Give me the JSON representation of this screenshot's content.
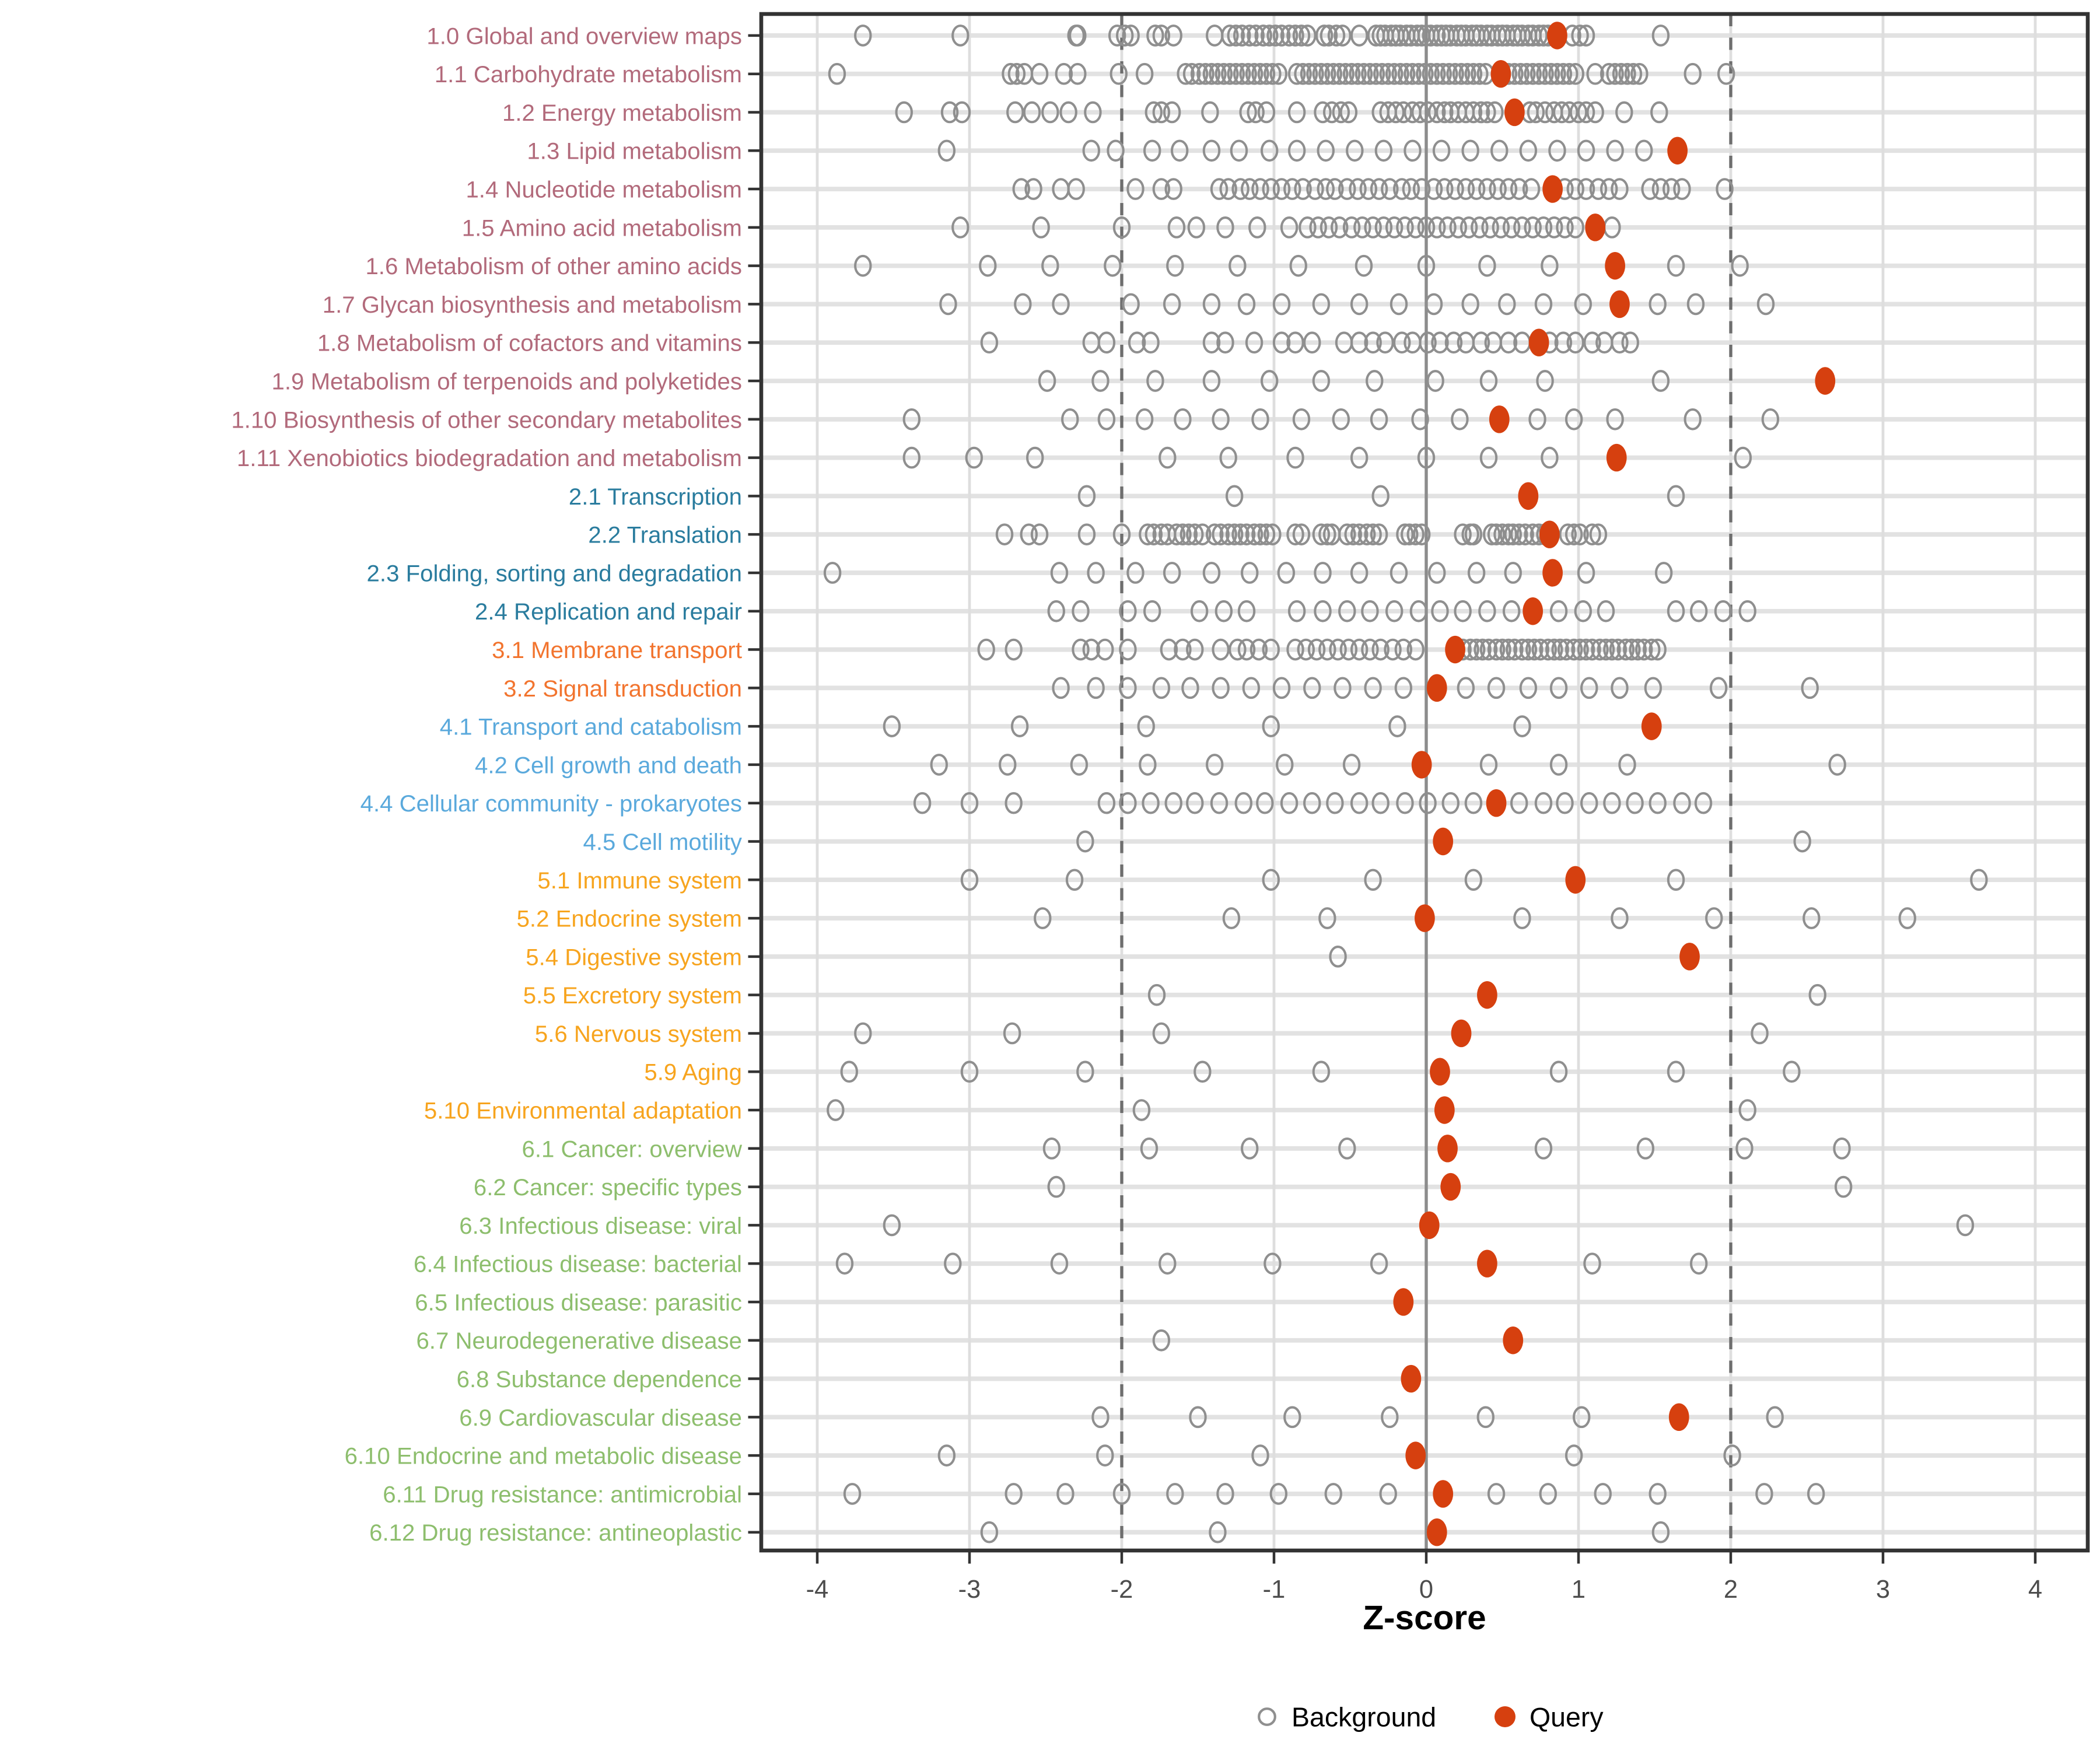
{
  "legend": {
    "background": "Background",
    "query": "Query"
  },
  "colors": {
    "query_point": "#D6400F",
    "background_point_stroke": "#8F8F8F",
    "row_gridline": "#E2E2E2",
    "col_gridline": "#DEDEDE",
    "zero_line": "#8C8C8C",
    "dashed_line": "#6E6E6E",
    "panel_border": "#333333",
    "tick_label": "#4D4D4D",
    "groups": {
      "1": "#B26A7B",
      "2": "#2A7C9E",
      "3": "#F2742E",
      "4": "#5AA9DC",
      "5": "#F7A41E",
      "6": "#8DBE6D"
    }
  },
  "chart_data": {
    "type": "scatter",
    "subtype": "horizontal-dot-strip",
    "title": "",
    "xlabel": "Z-score",
    "ylabel": "",
    "x_ticks": [
      -4,
      -3,
      -2,
      -1,
      0,
      1,
      2,
      3,
      4
    ],
    "xlim": [
      -4.4,
      4.35
    ],
    "grid": true,
    "legend_position": "bottom",
    "reference_lines": {
      "solid": [
        0
      ],
      "dashed": [
        -2,
        2
      ]
    },
    "series_names": [
      "Background",
      "Query"
    ],
    "rows": [
      {
        "label": "1.0 Global and overview maps",
        "group": "1",
        "query": 0.86,
        "background": [
          -3.7,
          -3.06,
          -2.3,
          -2.29,
          -2.03,
          -1.98,
          -1.94,
          -1.78,
          -1.74,
          -1.66,
          -1.39,
          -1.29,
          -1.25,
          -1.21,
          -1.16,
          -1.12,
          -1.07,
          -1.03,
          -0.99,
          -0.95,
          -0.9,
          -0.86,
          -0.82,
          -0.78,
          -0.67,
          -0.64,
          -0.59,
          -0.55,
          -0.44,
          -0.33,
          -0.3,
          -0.27,
          -0.23,
          -0.2,
          -0.17,
          -0.13,
          -0.1,
          -0.06,
          -0.03,
          0.0,
          0.03,
          0.07,
          0.1,
          0.13,
          0.16,
          0.2,
          0.23,
          0.26,
          0.3,
          0.33,
          0.36,
          0.4,
          0.43,
          0.47,
          0.5,
          0.53,
          0.57,
          0.6,
          0.63,
          0.67,
          0.7,
          0.74,
          0.77,
          0.8,
          0.96,
          1.01,
          1.05,
          1.54
        ]
      },
      {
        "label": "1.1 Carbohydrate metabolism",
        "group": "1",
        "query": 0.49,
        "background": [
          -3.87,
          -2.73,
          -2.69,
          -2.64,
          -2.54,
          -2.38,
          -2.29,
          -2.02,
          -1.85,
          -1.58,
          -1.54,
          -1.49,
          -1.45,
          -1.41,
          -1.37,
          -1.33,
          -1.29,
          -1.25,
          -1.21,
          -1.17,
          -1.13,
          -1.09,
          -1.05,
          -1.01,
          -0.97,
          -0.85,
          -0.81,
          -0.77,
          -0.73,
          -0.69,
          -0.65,
          -0.61,
          -0.57,
          -0.53,
          -0.49,
          -0.45,
          -0.41,
          -0.37,
          -0.33,
          -0.29,
          -0.25,
          -0.21,
          -0.17,
          -0.13,
          -0.09,
          -0.05,
          -0.01,
          0.03,
          0.07,
          0.11,
          0.15,
          0.19,
          0.23,
          0.27,
          0.31,
          0.35,
          0.39,
          0.54,
          0.58,
          0.62,
          0.66,
          0.7,
          0.74,
          0.78,
          0.82,
          0.86,
          0.9,
          0.94,
          0.98,
          1.11,
          1.2,
          1.24,
          1.28,
          1.32,
          1.36,
          1.4,
          1.75,
          1.97
        ]
      },
      {
        "label": "1.2 Energy metabolism",
        "group": "1",
        "query": 0.58,
        "background": [
          -3.43,
          -3.13,
          -3.05,
          -2.7,
          -2.59,
          -2.47,
          -2.35,
          -2.19,
          -1.79,
          -1.74,
          -1.67,
          -1.42,
          -1.17,
          -1.12,
          -1.05,
          -0.85,
          -0.68,
          -0.62,
          -0.56,
          -0.51,
          -0.3,
          -0.25,
          -0.2,
          -0.15,
          -0.09,
          -0.04,
          0.01,
          0.07,
          0.12,
          0.16,
          0.21,
          0.26,
          0.31,
          0.36,
          0.4,
          0.45,
          0.68,
          0.72,
          0.78,
          0.84,
          0.89,
          0.94,
          1.0,
          1.05,
          1.11,
          1.3,
          1.53
        ]
      },
      {
        "label": "1.3 Lipid metabolism",
        "group": "1",
        "query": 1.65,
        "background": [
          -3.15,
          -2.2,
          -2.04,
          -1.8,
          -1.62,
          -1.41,
          -1.23,
          -1.03,
          -0.85,
          -0.66,
          -0.47,
          -0.28,
          -0.09,
          0.1,
          0.29,
          0.48,
          0.67,
          0.86,
          1.05,
          1.24,
          1.43
        ]
      },
      {
        "label": "1.4 Nucleotide metabolism",
        "group": "1",
        "query": 0.83,
        "background": [
          -2.66,
          -2.58,
          -2.4,
          -2.3,
          -1.91,
          -1.74,
          -1.66,
          -1.36,
          -1.3,
          -1.22,
          -1.16,
          -1.09,
          -1.02,
          -0.95,
          -0.88,
          -0.81,
          -0.73,
          -0.66,
          -0.6,
          -0.52,
          -0.45,
          -0.38,
          -0.31,
          -0.24,
          -0.16,
          -0.1,
          -0.03,
          0.05,
          0.12,
          0.19,
          0.26,
          0.33,
          0.4,
          0.47,
          0.54,
          0.61,
          0.69,
          0.91,
          0.98,
          1.05,
          1.13,
          1.2,
          1.27,
          1.47,
          1.54,
          1.61,
          1.68,
          1.96
        ]
      },
      {
        "label": "1.5 Amino acid metabolism",
        "group": "1",
        "query": 1.11,
        "background": [
          -3.06,
          -2.53,
          -2.0,
          -1.64,
          -1.51,
          -1.32,
          -1.11,
          -0.9,
          -0.78,
          -0.71,
          -0.64,
          -0.57,
          -0.49,
          -0.42,
          -0.35,
          -0.28,
          -0.21,
          -0.14,
          -0.07,
          0.0,
          0.07,
          0.14,
          0.21,
          0.28,
          0.35,
          0.42,
          0.49,
          0.56,
          0.63,
          0.7,
          0.77,
          0.84,
          0.91,
          0.98,
          1.22
        ]
      },
      {
        "label": "1.6 Metabolism of other amino acids",
        "group": "1",
        "query": 1.24,
        "background": [
          -3.7,
          -2.88,
          -2.47,
          -2.06,
          -1.65,
          -1.24,
          -0.84,
          -0.41,
          0.0,
          0.4,
          0.81,
          1.64,
          2.06
        ]
      },
      {
        "label": "1.7 Glycan biosynthesis and metabolism",
        "group": "1",
        "query": 1.27,
        "background": [
          -3.14,
          -2.65,
          -2.4,
          -1.94,
          -1.67,
          -1.41,
          -1.18,
          -0.95,
          -0.69,
          -0.44,
          -0.18,
          0.05,
          0.29,
          0.53,
          0.77,
          1.03,
          1.52,
          1.77,
          2.23
        ]
      },
      {
        "label": "1.8 Metabolism of cofactors and vitamins",
        "group": "1",
        "query": 0.74,
        "background": [
          -2.87,
          -2.2,
          -2.1,
          -1.9,
          -1.81,
          -1.41,
          -1.32,
          -1.13,
          -0.95,
          -0.86,
          -0.75,
          -0.54,
          -0.44,
          -0.35,
          -0.27,
          -0.16,
          -0.09,
          0.01,
          0.09,
          0.18,
          0.26,
          0.36,
          0.44,
          0.54,
          0.63,
          0.81,
          0.9,
          0.98,
          1.09,
          1.17,
          1.27,
          1.34
        ]
      },
      {
        "label": "1.9 Metabolism of terpenoids and polyketides",
        "group": "1",
        "query": 2.62,
        "background": [
          -2.49,
          -2.14,
          -1.78,
          -1.41,
          -1.03,
          -0.69,
          -0.34,
          0.06,
          0.41,
          0.78,
          1.54
        ]
      },
      {
        "label": "1.10 Biosynthesis of other secondary metabolites",
        "group": "1",
        "query": 0.48,
        "background": [
          -3.38,
          -2.34,
          -2.1,
          -1.85,
          -1.6,
          -1.35,
          -1.09,
          -0.82,
          -0.56,
          -0.31,
          -0.04,
          0.22,
          0.73,
          0.97,
          1.24,
          1.75,
          2.26
        ]
      },
      {
        "label": "1.11 Xenobiotics biodegradation and metabolism",
        "group": "1",
        "query": 1.25,
        "background": [
          -3.38,
          -2.97,
          -2.57,
          -1.7,
          -1.3,
          -0.86,
          -0.44,
          0.0,
          0.41,
          0.81,
          2.08
        ]
      },
      {
        "label": "2.1 Transcription",
        "group": "2",
        "query": 0.67,
        "background": [
          -2.23,
          -1.26,
          -0.3,
          1.64
        ]
      },
      {
        "label": "2.2 Translation",
        "group": "2",
        "query": 0.81,
        "background": [
          -2.77,
          -2.61,
          -2.54,
          -2.23,
          -2.0,
          -1.83,
          -1.79,
          -1.74,
          -1.7,
          -1.64,
          -1.6,
          -1.56,
          -1.52,
          -1.47,
          -1.39,
          -1.35,
          -1.3,
          -1.26,
          -1.22,
          -1.18,
          -1.13,
          -1.09,
          -1.05,
          -1.01,
          -0.86,
          -0.82,
          -0.69,
          -0.65,
          -0.62,
          -0.52,
          -0.48,
          -0.44,
          -0.39,
          -0.35,
          -0.31,
          -0.14,
          -0.11,
          -0.07,
          -0.03,
          0.24,
          0.29,
          0.31,
          0.43,
          0.46,
          0.5,
          0.54,
          0.57,
          0.61,
          0.65,
          0.7,
          0.74,
          0.78,
          0.93,
          0.97,
          1.01,
          1.09,
          1.13
        ]
      },
      {
        "label": "2.3 Folding, sorting and degradation",
        "group": "2",
        "query": 0.83,
        "background": [
          -3.9,
          -2.41,
          -2.17,
          -1.91,
          -1.67,
          -1.41,
          -1.16,
          -0.92,
          -0.68,
          -0.44,
          -0.18,
          0.07,
          0.33,
          0.57,
          1.05,
          1.56
        ]
      },
      {
        "label": "2.4 Replication and repair",
        "group": "2",
        "query": 0.7,
        "background": [
          -2.43,
          -2.27,
          -1.96,
          -1.8,
          -1.49,
          -1.33,
          -1.18,
          -0.85,
          -0.68,
          -0.52,
          -0.37,
          -0.21,
          -0.05,
          0.09,
          0.24,
          0.4,
          0.56,
          0.87,
          1.03,
          1.18,
          1.64,
          1.79,
          1.95,
          2.11
        ]
      },
      {
        "label": "3.1 Membrane transport",
        "group": "3",
        "query": 0.19,
        "background": [
          -2.89,
          -2.71,
          -2.27,
          -2.2,
          -2.11,
          -1.96,
          -1.69,
          -1.6,
          -1.52,
          -1.35,
          -1.24,
          -1.18,
          -1.1,
          -1.02,
          -0.86,
          -0.79,
          -0.72,
          -0.65,
          -0.58,
          -0.51,
          -0.44,
          -0.37,
          -0.3,
          -0.22,
          -0.15,
          -0.07,
          0.24,
          0.29,
          0.33,
          0.37,
          0.41,
          0.46,
          0.5,
          0.54,
          0.58,
          0.63,
          0.67,
          0.71,
          0.75,
          0.8,
          0.84,
          0.88,
          0.92,
          0.97,
          1.01,
          1.05,
          1.09,
          1.14,
          1.18,
          1.22,
          1.26,
          1.31,
          1.35,
          1.39,
          1.43,
          1.48,
          1.52
        ]
      },
      {
        "label": "3.2 Signal transduction",
        "group": "3",
        "query": 0.07,
        "background": [
          -2.4,
          -2.17,
          -1.96,
          -1.74,
          -1.55,
          -1.35,
          -1.15,
          -0.95,
          -0.75,
          -0.55,
          -0.35,
          -0.15,
          0.26,
          0.46,
          0.67,
          0.87,
          1.07,
          1.27,
          1.49,
          1.92,
          2.52
        ]
      },
      {
        "label": "4.1 Transport and catabolism",
        "group": "4",
        "query": 1.48,
        "background": [
          -3.51,
          -2.67,
          -1.84,
          -1.02,
          -0.19,
          0.63
        ]
      },
      {
        "label": "4.2 Cell growth and death",
        "group": "4",
        "query": -0.03,
        "background": [
          -3.2,
          -2.75,
          -2.28,
          -1.83,
          -1.39,
          -0.93,
          -0.49,
          0.41,
          0.87,
          1.32,
          2.7
        ]
      },
      {
        "label": "4.4 Cellular community - prokaryotes",
        "group": "4",
        "query": 0.46,
        "background": [
          -3.31,
          -3.0,
          -2.71,
          -2.1,
          -1.96,
          -1.81,
          -1.66,
          -1.52,
          -1.36,
          -1.2,
          -1.06,
          -0.9,
          -0.75,
          -0.6,
          -0.44,
          -0.3,
          -0.14,
          0.01,
          0.16,
          0.31,
          0.61,
          0.77,
          0.91,
          1.07,
          1.22,
          1.37,
          1.52,
          1.68,
          1.82
        ]
      },
      {
        "label": "4.5 Cell motility",
        "group": "4",
        "query": 0.11,
        "background": [
          -2.24,
          2.47
        ]
      },
      {
        "label": "5.1 Immune system",
        "group": "5",
        "query": 0.98,
        "background": [
          -3.0,
          -2.31,
          -1.02,
          -0.35,
          0.31,
          1.64,
          3.63
        ]
      },
      {
        "label": "5.2 Endocrine system",
        "group": "5",
        "query": -0.01,
        "background": [
          -2.52,
          -1.28,
          -0.65,
          0.63,
          1.27,
          1.89,
          2.53,
          3.16
        ]
      },
      {
        "label": "5.4 Digestive system",
        "group": "5",
        "query": 1.73,
        "background": [
          -0.58
        ]
      },
      {
        "label": "5.5 Excretory system",
        "group": "5",
        "query": 0.4,
        "background": [
          -1.77,
          2.57
        ]
      },
      {
        "label": "5.6 Nervous system",
        "group": "5",
        "query": 0.23,
        "background": [
          -3.7,
          -2.72,
          -1.74,
          2.19
        ]
      },
      {
        "label": "5.9 Aging",
        "group": "5",
        "query": 0.09,
        "background": [
          -3.79,
          -3.0,
          -2.24,
          -1.47,
          -0.69,
          0.87,
          1.64,
          2.4
        ]
      },
      {
        "label": "5.10 Environmental adaptation",
        "group": "5",
        "query": 0.12,
        "background": [
          -3.88,
          -1.87,
          2.11
        ]
      },
      {
        "label": "6.1 Cancer: overview",
        "group": "6",
        "query": 0.14,
        "background": [
          -2.46,
          -1.82,
          -1.16,
          -0.52,
          0.77,
          1.44,
          2.09,
          2.73
        ]
      },
      {
        "label": "6.2 Cancer: specific types",
        "group": "6",
        "query": 0.16,
        "background": [
          -2.43,
          2.74
        ]
      },
      {
        "label": "6.3 Infectious disease: viral",
        "group": "6",
        "query": 0.02,
        "background": [
          -3.51,
          3.54
        ]
      },
      {
        "label": "6.4 Infectious disease: bacterial",
        "group": "6",
        "query": 0.4,
        "background": [
          -3.82,
          -3.11,
          -2.41,
          -1.7,
          -1.01,
          -0.31,
          1.09,
          1.79
        ]
      },
      {
        "label": "6.5 Infectious disease: parasitic",
        "group": "6",
        "query": -0.15,
        "background": []
      },
      {
        "label": "6.7 Neurodegenerative disease",
        "group": "6",
        "query": 0.57,
        "background": [
          -1.74
        ]
      },
      {
        "label": "6.8 Substance dependence",
        "group": "6",
        "query": -0.1,
        "background": []
      },
      {
        "label": "6.9 Cardiovascular disease",
        "group": "6",
        "query": 1.66,
        "background": [
          -2.14,
          -1.5,
          -0.88,
          -0.24,
          0.39,
          1.02,
          2.29
        ]
      },
      {
        "label": "6.10 Endocrine and metabolic disease",
        "group": "6",
        "query": -0.07,
        "background": [
          -3.15,
          -2.11,
          -1.09,
          0.97,
          2.01
        ]
      },
      {
        "label": "6.11 Drug resistance: antimicrobial",
        "group": "6",
        "query": 0.11,
        "background": [
          -3.77,
          -2.71,
          -2.37,
          -2.0,
          -1.65,
          -1.32,
          -0.97,
          -0.61,
          -0.25,
          0.46,
          0.8,
          1.16,
          1.52,
          2.22,
          2.56
        ]
      },
      {
        "label": "6.12 Drug resistance: antineoplastic",
        "group": "6",
        "query": 0.07,
        "background": [
          -2.87,
          -1.37,
          1.54
        ]
      }
    ]
  }
}
